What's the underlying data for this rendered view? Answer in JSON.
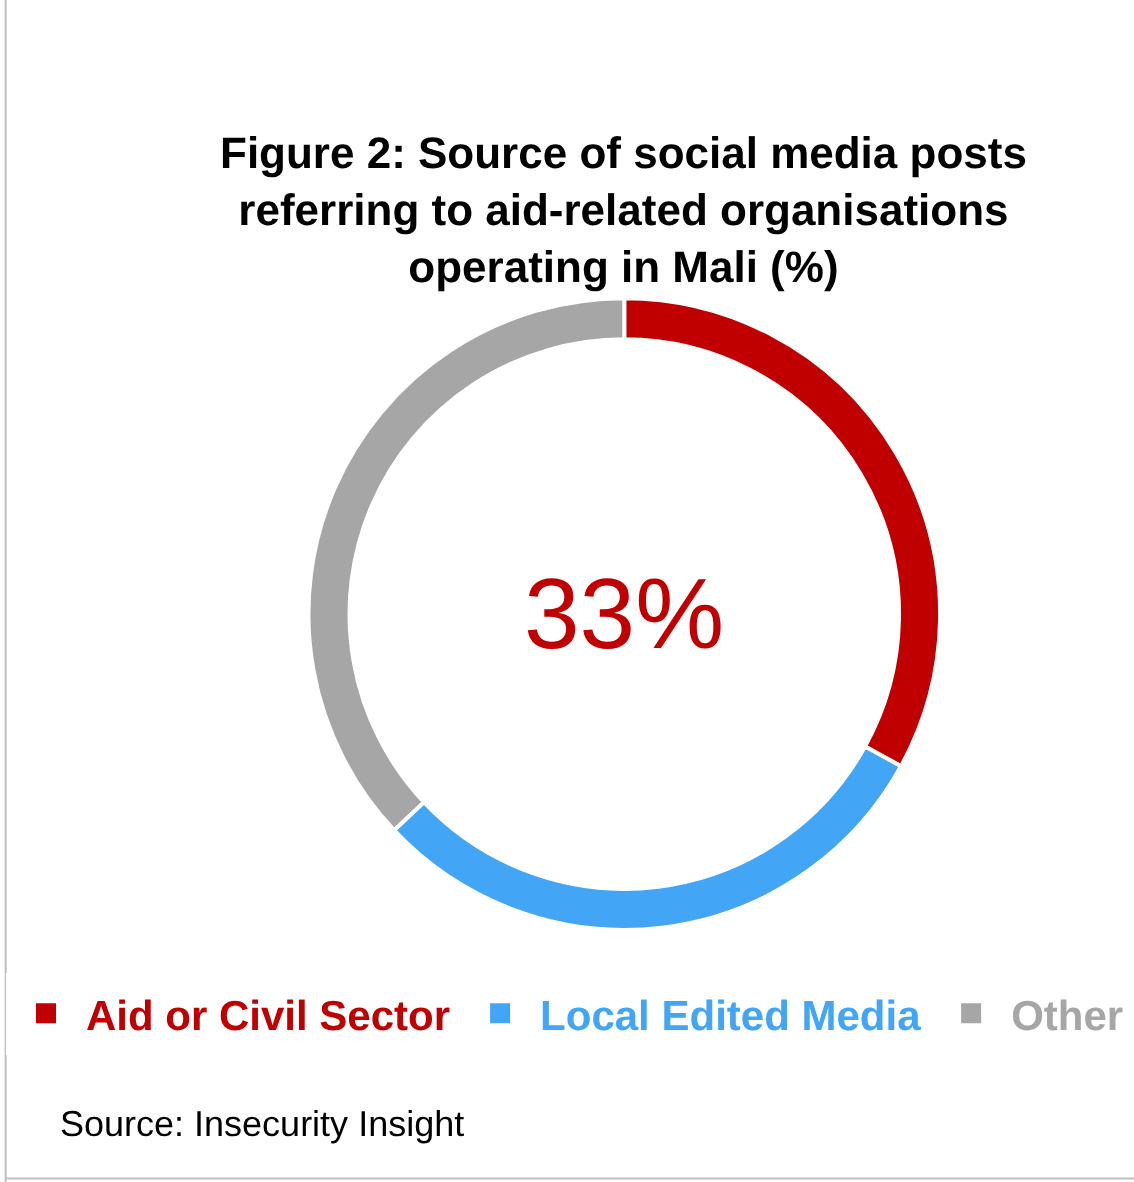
{
  "chart_data": {
    "type": "donut",
    "title": "Figure 2: Source of social media posts referring to aid-related organisations operating in Mali (%)",
    "categories": [
      "Aid or Civil Sector",
      "Local Edited Media",
      "Other"
    ],
    "values": [
      33,
      30,
      37
    ],
    "colors": [
      "#c00000",
      "#42a5f5",
      "#a6a6a6"
    ],
    "annotations": [
      "33%",
      "Source: Insecurity Insight"
    ],
    "legend": "bottom"
  }
}
